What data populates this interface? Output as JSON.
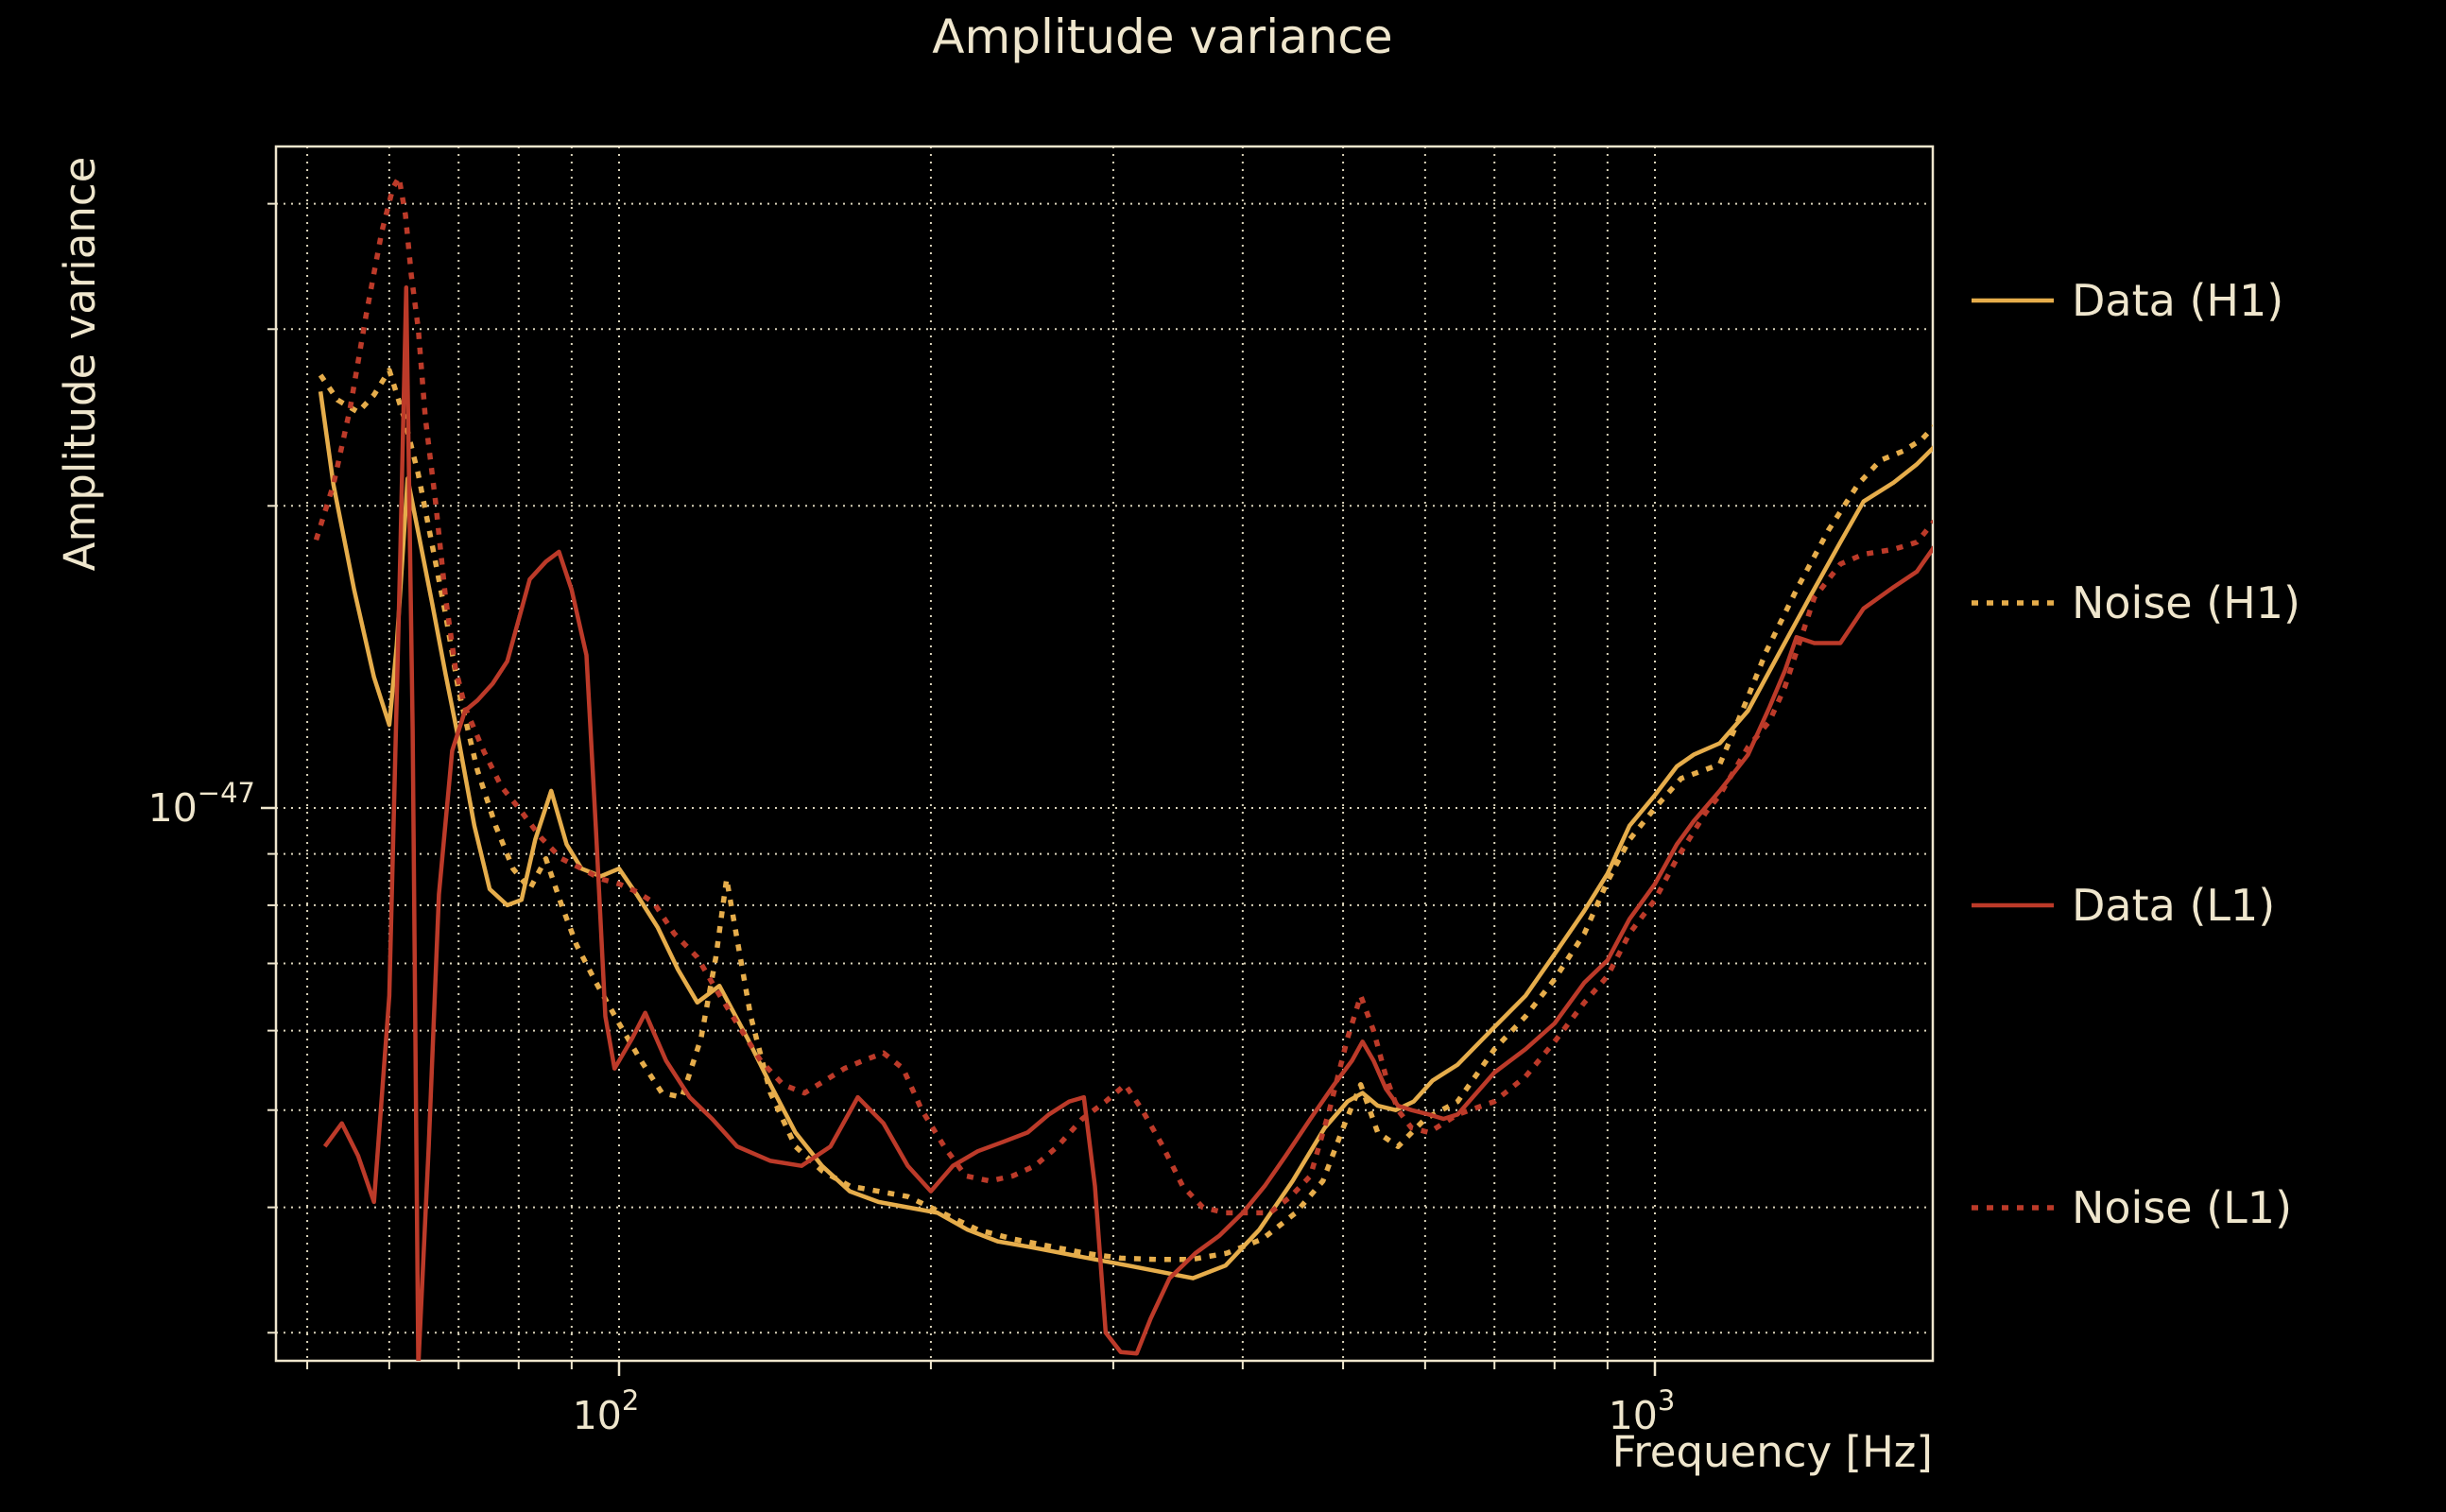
{
  "colors": {
    "background": "#000000",
    "foreground": "#efe6cd",
    "grid": "#ece4c9",
    "gold": "#e6ad4b",
    "red": "#bc3a29"
  },
  "chart_data": {
    "type": "line",
    "title": "Amplitude variance",
    "xlabel": "Frequency [Hz]",
    "ylabel": "Amplitude variance",
    "x_scale": "log",
    "y_scale": "log",
    "xlim_hz": [
      46.6,
      1854
    ],
    "ylim": [
      2.8e-48,
      4.6e-47
    ],
    "grid": "dotted major+minor",
    "legend_position": "outside-right",
    "x_major_ticks": [
      {
        "value": 100,
        "base": "10",
        "exp": "2"
      },
      {
        "value": 1000,
        "base": "10",
        "exp": "3"
      }
    ],
    "y_major_ticks": [
      {
        "value_1e48": 10,
        "base": "10",
        "exp": "−47"
      }
    ],
    "x_minor_gridlines_hz": [
      50,
      60,
      70,
      80,
      90,
      200,
      300,
      400,
      500,
      600,
      700,
      800,
      900
    ],
    "y_minor_gridlines_1e48": [
      3,
      4,
      5,
      6,
      7,
      8,
      9,
      20,
      30,
      40
    ],
    "value_scale": "all series values are in units of 1e-48",
    "series": [
      {
        "name": "Data (H1)",
        "color": "#e6ad4b",
        "style": "solid",
        "points": [
          [
            51.5,
            26
          ],
          [
            53,
            21
          ],
          [
            55.5,
            16.5
          ],
          [
            58,
            13.5
          ],
          [
            60,
            12.1
          ],
          [
            61,
            14.5
          ],
          [
            62.5,
            21.3
          ],
          [
            64,
            18.8
          ],
          [
            66,
            16
          ],
          [
            68,
            13.6
          ],
          [
            70,
            11.7
          ],
          [
            72.5,
            9.6
          ],
          [
            75,
            8.3
          ],
          [
            78,
            8.0
          ],
          [
            80.5,
            8.1
          ],
          [
            83,
            9.3
          ],
          [
            86,
            10.4
          ],
          [
            89,
            9.2
          ],
          [
            92,
            8.7
          ],
          [
            96,
            8.55
          ],
          [
            100,
            8.7
          ],
          [
            104,
            8.2
          ],
          [
            109,
            7.6
          ],
          [
            114,
            6.9
          ],
          [
            119,
            6.4
          ],
          [
            125,
            6.65
          ],
          [
            133,
            5.9
          ],
          [
            140,
            5.3
          ],
          [
            148,
            4.75
          ],
          [
            157,
            4.4
          ],
          [
            167,
            4.15
          ],
          [
            178,
            4.05
          ],
          [
            190,
            4.0
          ],
          [
            203,
            3.95
          ],
          [
            217,
            3.8
          ],
          [
            232,
            3.7
          ],
          [
            250,
            3.65
          ],
          [
            268,
            3.6
          ],
          [
            288,
            3.55
          ],
          [
            310,
            3.5
          ],
          [
            333,
            3.45
          ],
          [
            358,
            3.4
          ],
          [
            385,
            3.5
          ],
          [
            415,
            3.8
          ],
          [
            447,
            4.25
          ],
          [
            480,
            4.8
          ],
          [
            505,
            5.1
          ],
          [
            522,
            5.2
          ],
          [
            540,
            5.05
          ],
          [
            562,
            5.0
          ],
          [
            585,
            5.1
          ],
          [
            610,
            5.35
          ],
          [
            645,
            5.55
          ],
          [
            700,
            6.05
          ],
          [
            750,
            6.5
          ],
          [
            800,
            7.15
          ],
          [
            855,
            7.9
          ],
          [
            900,
            8.6
          ],
          [
            945,
            9.6
          ],
          [
            1000,
            10.3
          ],
          [
            1050,
            11.0
          ],
          [
            1090,
            11.3
          ],
          [
            1155,
            11.6
          ],
          [
            1230,
            12.5
          ],
          [
            1320,
            14.3
          ],
          [
            1410,
            16.2
          ],
          [
            1510,
            18.4
          ],
          [
            1590,
            20.2
          ],
          [
            1700,
            21.1
          ],
          [
            1790,
            22.0
          ],
          [
            1860,
            22.9
          ]
        ]
      },
      {
        "name": "Noise (H1)",
        "color": "#e6ad4b",
        "style": "dotted",
        "points": [
          [
            51.5,
            27
          ],
          [
            53.5,
            25.5
          ],
          [
            56,
            24.8
          ],
          [
            58,
            25.8
          ],
          [
            60,
            27.3
          ],
          [
            62,
            24.5
          ],
          [
            64,
            21.5
          ],
          [
            66,
            18.3
          ],
          [
            68,
            15.6
          ],
          [
            70,
            13.1
          ],
          [
            73,
            10.9
          ],
          [
            76,
            9.6
          ],
          [
            79,
            8.7
          ],
          [
            82,
            8.3
          ],
          [
            85,
            8.9
          ],
          [
            88,
            8.0
          ],
          [
            91,
            7.3
          ],
          [
            95,
            6.7
          ],
          [
            100,
            6.1
          ],
          [
            105,
            5.6
          ],
          [
            110,
            5.2
          ],
          [
            115,
            5.15
          ],
          [
            120,
            5.9
          ],
          [
            124,
            7.1
          ],
          [
            127,
            8.5
          ],
          [
            130,
            7.4
          ],
          [
            134,
            6.2
          ],
          [
            140,
            5.2
          ],
          [
            148,
            4.6
          ],
          [
            157,
            4.35
          ],
          [
            167,
            4.2
          ],
          [
            178,
            4.15
          ],
          [
            190,
            4.1
          ],
          [
            205,
            3.95
          ],
          [
            222,
            3.8
          ],
          [
            240,
            3.72
          ],
          [
            260,
            3.66
          ],
          [
            282,
            3.6
          ],
          [
            305,
            3.56
          ],
          [
            330,
            3.55
          ],
          [
            357,
            3.55
          ],
          [
            386,
            3.6
          ],
          [
            418,
            3.72
          ],
          [
            450,
            3.95
          ],
          [
            478,
            4.25
          ],
          [
            500,
            4.8
          ],
          [
            520,
            5.3
          ],
          [
            540,
            4.75
          ],
          [
            565,
            4.6
          ],
          [
            600,
            4.9
          ],
          [
            645,
            5.1
          ],
          [
            700,
            5.75
          ],
          [
            750,
            6.2
          ],
          [
            800,
            6.75
          ],
          [
            855,
            7.5
          ],
          [
            900,
            8.45
          ],
          [
            945,
            9.3
          ],
          [
            1000,
            10.0
          ],
          [
            1060,
            10.7
          ],
          [
            1155,
            11.05
          ],
          [
            1230,
            12.9
          ],
          [
            1280,
            14.3
          ],
          [
            1370,
            16.5
          ],
          [
            1470,
            18.9
          ],
          [
            1570,
            21.0
          ],
          [
            1650,
            22.2
          ],
          [
            1740,
            22.7
          ],
          [
            1810,
            23.3
          ],
          [
            1860,
            24.0
          ]
        ]
      },
      {
        "name": "Data (L1)",
        "color": "#bc3a29",
        "style": "solid",
        "points": [
          [
            52,
            4.6
          ],
          [
            54,
            4.85
          ],
          [
            56,
            4.5
          ],
          [
            58,
            4.05
          ],
          [
            60,
            6.5
          ],
          [
            61.5,
            18
          ],
          [
            62.3,
            33
          ],
          [
            63.2,
            12
          ],
          [
            64,
            2.78
          ],
          [
            65.5,
            4.6
          ],
          [
            67,
            8.2
          ],
          [
            69,
            11.4
          ],
          [
            71,
            12.5
          ],
          [
            73,
            12.8
          ],
          [
            75.5,
            13.3
          ],
          [
            78,
            14.0
          ],
          [
            82,
            16.9
          ],
          [
            85,
            17.6
          ],
          [
            87.5,
            18.0
          ],
          [
            90,
            16.5
          ],
          [
            93,
            14.2
          ],
          [
            95,
            9.5
          ],
          [
            97,
            6.2
          ],
          [
            99,
            5.5
          ],
          [
            103,
            5.9
          ],
          [
            106,
            6.25
          ],
          [
            111,
            5.6
          ],
          [
            117,
            5.15
          ],
          [
            123,
            4.9
          ],
          [
            130,
            4.6
          ],
          [
            140,
            4.45
          ],
          [
            150,
            4.4
          ],
          [
            160,
            4.6
          ],
          [
            170,
            5.15
          ],
          [
            180,
            4.85
          ],
          [
            190,
            4.4
          ],
          [
            200,
            4.15
          ],
          [
            210,
            4.4
          ],
          [
            222,
            4.55
          ],
          [
            235,
            4.65
          ],
          [
            248,
            4.75
          ],
          [
            260,
            4.95
          ],
          [
            272,
            5.1
          ],
          [
            281,
            5.15
          ],
          [
            288,
            4.2
          ],
          [
            295,
            3.0
          ],
          [
            305,
            2.87
          ],
          [
            316,
            2.86
          ],
          [
            326,
            3.1
          ],
          [
            340,
            3.4
          ],
          [
            360,
            3.6
          ],
          [
            380,
            3.75
          ],
          [
            400,
            3.95
          ],
          [
            420,
            4.2
          ],
          [
            440,
            4.5
          ],
          [
            465,
            4.9
          ],
          [
            490,
            5.3
          ],
          [
            510,
            5.6
          ],
          [
            522,
            5.85
          ],
          [
            535,
            5.6
          ],
          [
            550,
            5.25
          ],
          [
            565,
            5.05
          ],
          [
            582,
            5.0
          ],
          [
            605,
            4.95
          ],
          [
            625,
            4.9
          ],
          [
            645,
            4.95
          ],
          [
            700,
            5.45
          ],
          [
            750,
            5.75
          ],
          [
            800,
            6.1
          ],
          [
            855,
            6.7
          ],
          [
            900,
            7.05
          ],
          [
            945,
            7.75
          ],
          [
            1000,
            8.4
          ],
          [
            1050,
            9.2
          ],
          [
            1090,
            9.7
          ],
          [
            1155,
            10.4
          ],
          [
            1230,
            11.3
          ],
          [
            1290,
            12.6
          ],
          [
            1335,
            13.7
          ],
          [
            1370,
            14.8
          ],
          [
            1425,
            14.6
          ],
          [
            1510,
            14.6
          ],
          [
            1590,
            15.8
          ],
          [
            1700,
            16.6
          ],
          [
            1790,
            17.2
          ],
          [
            1860,
            18.2
          ]
        ]
      },
      {
        "name": "Noise (L1)",
        "color": "#bc3a29",
        "style": "dotted",
        "points": [
          [
            51,
            18.5
          ],
          [
            53,
            21
          ],
          [
            55,
            25
          ],
          [
            57,
            31
          ],
          [
            59,
            37.5
          ],
          [
            60.5,
            41.5
          ],
          [
            61.3,
            42.5
          ],
          [
            62.2,
            39
          ],
          [
            63,
            34
          ],
          [
            64,
            30
          ],
          [
            65,
            24.5
          ],
          [
            66.5,
            20.2
          ],
          [
            68,
            16.2
          ],
          [
            69.5,
            13.8
          ],
          [
            71,
            12.6
          ],
          [
            74,
            11.4
          ],
          [
            77,
            10.5
          ],
          [
            80,
            10.0
          ],
          [
            84,
            9.35
          ],
          [
            88,
            8.9
          ],
          [
            92,
            8.7
          ],
          [
            96,
            8.5
          ],
          [
            100,
            8.4
          ],
          [
            104,
            8.25
          ],
          [
            108,
            8.05
          ],
          [
            113,
            7.5
          ],
          [
            119,
            7.1
          ],
          [
            124,
            6.6
          ],
          [
            130,
            6.1
          ],
          [
            137,
            5.6
          ],
          [
            144,
            5.3
          ],
          [
            151,
            5.2
          ],
          [
            158,
            5.35
          ],
          [
            165,
            5.5
          ],
          [
            172,
            5.6
          ],
          [
            180,
            5.7
          ],
          [
            188,
            5.5
          ],
          [
            196,
            5.0
          ],
          [
            206,
            4.6
          ],
          [
            216,
            4.3
          ],
          [
            228,
            4.25
          ],
          [
            240,
            4.3
          ],
          [
            252,
            4.4
          ],
          [
            265,
            4.6
          ],
          [
            280,
            4.9
          ],
          [
            295,
            5.1
          ],
          [
            308,
            5.3
          ],
          [
            320,
            5.0
          ],
          [
            335,
            4.6
          ],
          [
            350,
            4.2
          ],
          [
            366,
            4.0
          ],
          [
            385,
            3.95
          ],
          [
            405,
            3.95
          ],
          [
            425,
            3.95
          ],
          [
            445,
            4.1
          ],
          [
            465,
            4.3
          ],
          [
            485,
            5.0
          ],
          [
            505,
            5.9
          ],
          [
            520,
            6.5
          ],
          [
            535,
            6.0
          ],
          [
            550,
            5.4
          ],
          [
            565,
            5.0
          ],
          [
            582,
            4.8
          ],
          [
            605,
            4.75
          ],
          [
            625,
            4.85
          ],
          [
            645,
            4.95
          ],
          [
            700,
            5.1
          ],
          [
            750,
            5.4
          ],
          [
            800,
            5.85
          ],
          [
            855,
            6.4
          ],
          [
            900,
            6.8
          ],
          [
            945,
            7.5
          ],
          [
            1000,
            8.1
          ],
          [
            1050,
            8.9
          ],
          [
            1120,
            9.9
          ],
          [
            1155,
            10.3
          ],
          [
            1230,
            11.5
          ],
          [
            1290,
            12.2
          ],
          [
            1335,
            13.2
          ],
          [
            1425,
            16.2
          ],
          [
            1510,
            17.5
          ],
          [
            1590,
            17.9
          ],
          [
            1700,
            18.1
          ],
          [
            1790,
            18.4
          ],
          [
            1860,
            19.3
          ]
        ]
      }
    ]
  }
}
